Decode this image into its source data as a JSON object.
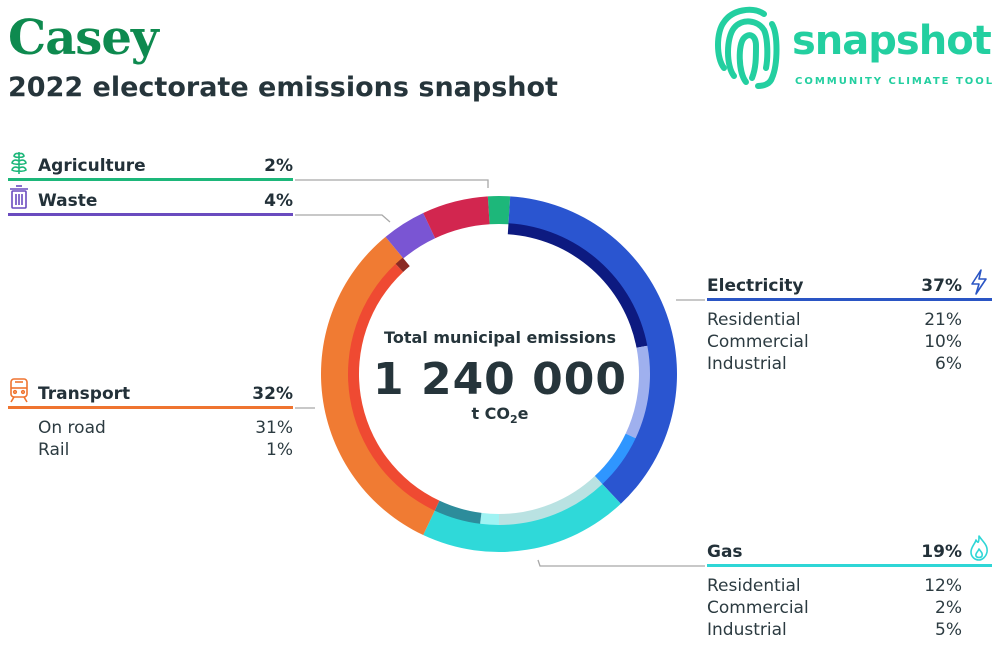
{
  "header": {
    "title": "Casey",
    "subtitle": "2022 electorate emissions snapshot"
  },
  "logo": {
    "wordmark": "snapshot",
    "tagline": "COMMUNITY CLIMATE TOOL",
    "icon": "fingerprint-icon",
    "color": "#23cfa0"
  },
  "center": {
    "label": "Total municipal emissions",
    "value": "1 240 000",
    "unit_prefix": "t CO",
    "unit_sub": "2",
    "unit_suffix": "e"
  },
  "sectors": [
    {
      "key": "agriculture",
      "name": "Agriculture",
      "pct": "2%",
      "icon": "plant-icon",
      "color": "#1db77a",
      "subs": []
    },
    {
      "key": "waste",
      "name": "Waste",
      "pct": "4%",
      "icon": "trash-bin-icon",
      "color": "#6a4bbf",
      "subs": []
    },
    {
      "key": "transport",
      "name": "Transport",
      "pct": "32%",
      "icon": "train-icon",
      "color": "#ef7430",
      "subs": [
        {
          "name": "On road",
          "pct": "31%"
        },
        {
          "name": "Rail",
          "pct": "1%"
        }
      ]
    },
    {
      "key": "electricity",
      "name": "Electricity",
      "pct": "37%",
      "icon": "lightning-icon",
      "color": "#2a55c4",
      "subs": [
        {
          "name": "Residential",
          "pct": "21%"
        },
        {
          "name": "Commercial",
          "pct": "10%"
        },
        {
          "name": "Industrial",
          "pct": "6%"
        }
      ]
    },
    {
      "key": "gas",
      "name": "Gas",
      "pct": "19%",
      "icon": "flame-icon",
      "color": "#2fd6d6",
      "subs": [
        {
          "name": "Residential",
          "pct": "12%"
        },
        {
          "name": "Commercial",
          "pct": "2%"
        },
        {
          "name": "Industrial",
          "pct": "5%"
        }
      ]
    }
  ],
  "chart_data": {
    "type": "pie",
    "variant": "donut",
    "total": 1240000,
    "unit": "t CO2e",
    "outer_ring": [
      {
        "label": "Agriculture",
        "value": 2,
        "color": "#1db77a"
      },
      {
        "label": "Electricity",
        "value": 37,
        "color": "#2a55d0"
      },
      {
        "label": "Gas",
        "value": 19,
        "color": "#2fd9d9"
      },
      {
        "label": "Transport",
        "value": 32,
        "color": "#f07b33"
      },
      {
        "label": "Waste",
        "value": 4,
        "color": "#7a55d3"
      },
      {
        "label": "",
        "value": 6,
        "color": "#d2264f"
      }
    ],
    "inner_ring": [
      {
        "label": "Electricity Residential",
        "value": 21,
        "color": "#0d1a80"
      },
      {
        "label": "Electricity Commercial",
        "value": 10,
        "color": "#9fb0ee"
      },
      {
        "label": "Electricity Industrial",
        "value": 6,
        "color": "#2f96ff"
      },
      {
        "label": "Gas Residential",
        "value": 12,
        "color": "#b9e2e2"
      },
      {
        "label": "Gas Commercial",
        "value": 2,
        "color": "#9ff3f3"
      },
      {
        "label": "Gas Industrial",
        "value": 5,
        "color": "#2d8c9b"
      },
      {
        "label": "Transport On road",
        "value": 31,
        "color": "#ef4a32"
      },
      {
        "label": "Transport Rail",
        "value": 1,
        "color": "#8b2a24"
      }
    ]
  }
}
